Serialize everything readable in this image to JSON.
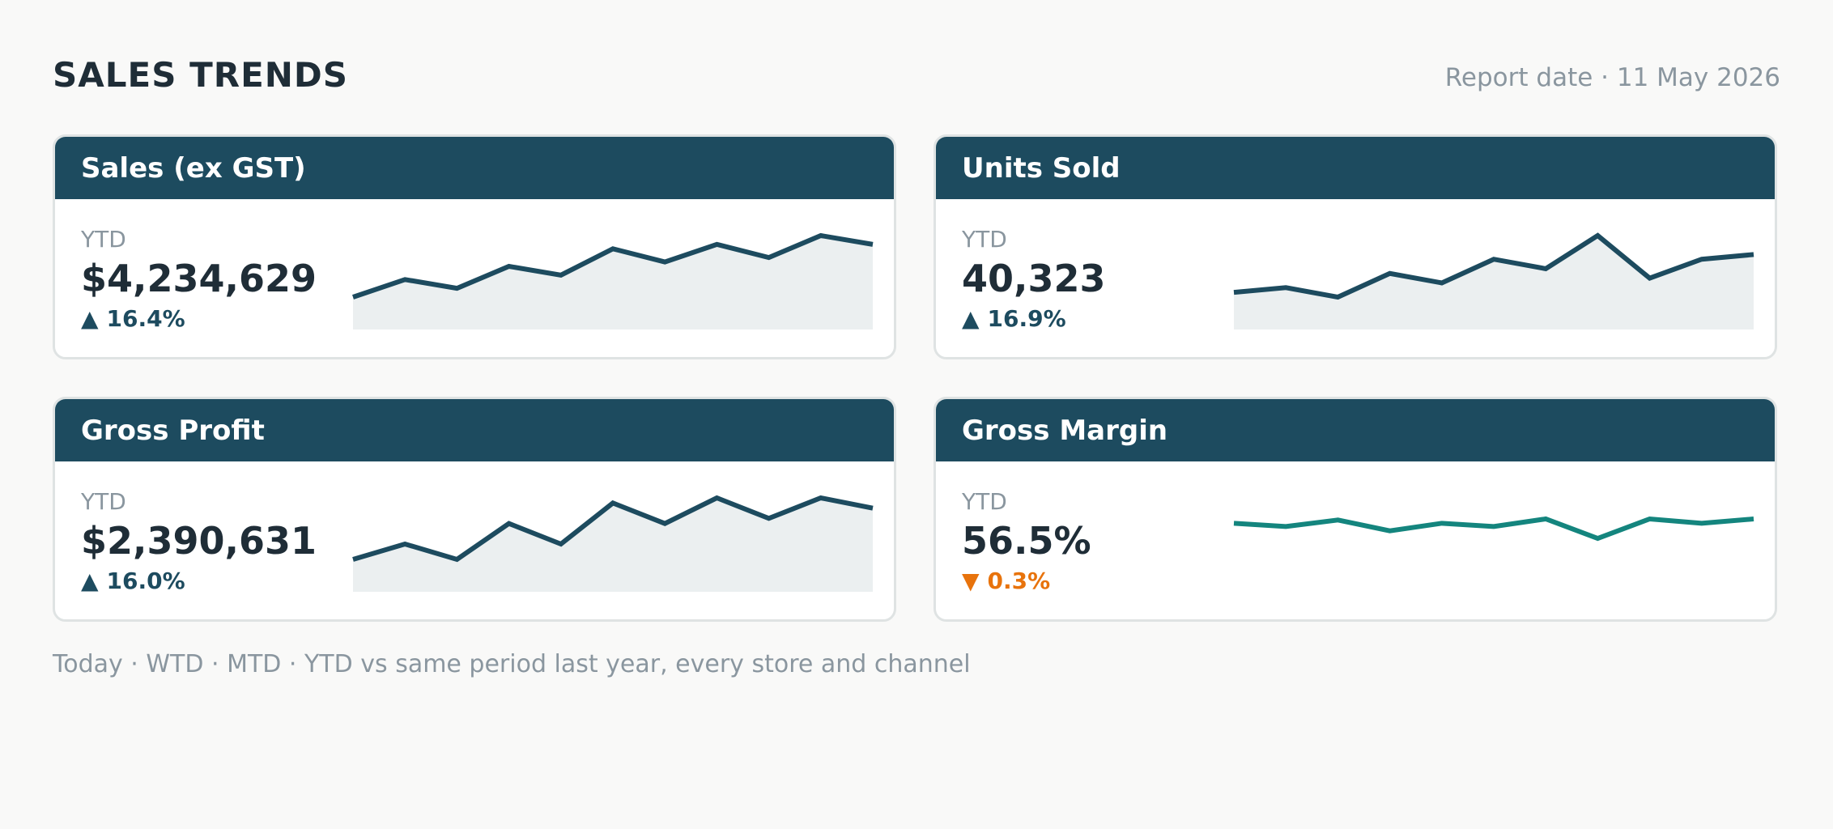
{
  "header": {
    "title": "SALES TRENDS",
    "report_date": "Report date · 11 May 2026"
  },
  "cards": [
    {
      "title": "Sales (ex GST)",
      "period": "YTD",
      "value": "$4,234,629",
      "change": "16.4%",
      "direction": "up",
      "trend": [
        3,
        5,
        4,
        6.5,
        5.5,
        8.5,
        7,
        9,
        7.5,
        10,
        9
      ],
      "line_color": "#1d4b5f",
      "fill": true
    },
    {
      "title": "Units Sold",
      "period": "YTD",
      "value": "40,323",
      "change": "16.9%",
      "direction": "up",
      "trend": [
        4,
        4.5,
        3.5,
        6,
        5,
        7.5,
        6.5,
        10,
        5.5,
        7.5,
        8
      ],
      "line_color": "#1d4b5f",
      "fill": true
    },
    {
      "title": "Gross Profit",
      "period": "YTD",
      "value": "$2,390,631",
      "change": "16.0%",
      "direction": "up",
      "trend": [
        3,
        4.5,
        3,
        6.5,
        4.5,
        8.5,
        6.5,
        9,
        7,
        9,
        8
      ],
      "line_color": "#1d4b5f",
      "fill": true
    },
    {
      "title": "Gross Margin",
      "period": "YTD",
      "value": "56.5%",
      "change": "0.3%",
      "direction": "down",
      "trend": [
        56.6,
        56.45,
        56.75,
        56.25,
        56.6,
        56.45,
        56.8,
        55.9,
        56.8,
        56.6,
        56.8
      ],
      "line_color": "#14857e",
      "fill": false
    }
  ],
  "footnote": "Today · WTD · MTD · YTD vs same period last year, every store and channel",
  "colors": {
    "header_bg": "#1d4b5f",
    "up": "#1d4b5f",
    "down": "#e8730c",
    "area_fill": "#ebeff0"
  }
}
